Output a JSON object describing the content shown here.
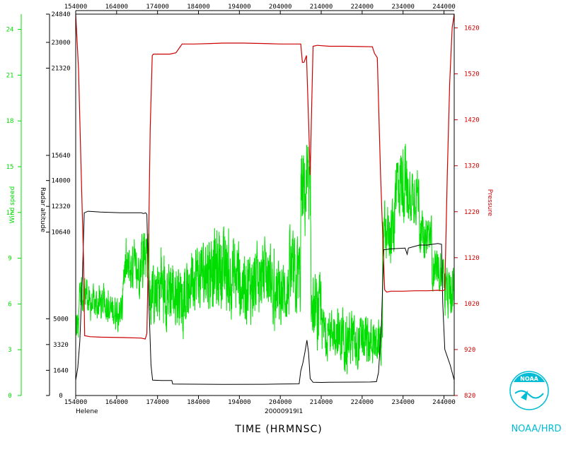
{
  "chart_data": {
    "type": "line",
    "storm_name": "Helene",
    "date_code": "20000919I1",
    "xlabel": "TIME (HRMNSC)",
    "x_ticks": [
      "154000",
      "164000",
      "174000",
      "184000",
      "194000",
      "204000",
      "214000",
      "224000",
      "234000",
      "244000"
    ],
    "xlim": [
      154000,
      246500
    ],
    "axes": {
      "wind": {
        "label": "Wind speed",
        "range": [
          0,
          25
        ],
        "ticks": [
          "0",
          "3",
          "6",
          "9",
          "12",
          "15",
          "18",
          "21",
          "24"
        ],
        "color": "#00dd00"
      },
      "altitude": {
        "label": "Radar altitude",
        "range": [
          0,
          24840
        ],
        "ticks": [
          "0",
          "1640",
          "3320",
          "5000",
          "10640",
          "12320",
          "14000",
          "15640",
          "21320",
          "23000",
          "24840"
        ],
        "color": "#00aa00"
      },
      "pressure": {
        "label": "Pressure",
        "range": [
          820,
          1650
        ],
        "ticks": [
          "820",
          "920",
          "1020",
          "1120",
          "1220",
          "1320",
          "1420",
          "1520",
          "1620"
        ],
        "color": "#cc0000"
      }
    },
    "series": [
      {
        "name": "Pressure",
        "color": "#cc0000",
        "points": [
          [
            154000,
            1650
          ],
          [
            154700,
            1530
          ],
          [
            155300,
            1320
          ],
          [
            155900,
            1120
          ],
          [
            156200,
            950
          ],
          [
            157500,
            948
          ],
          [
            160000,
            947
          ],
          [
            166000,
            946
          ],
          [
            170000,
            945
          ],
          [
            171000,
            943
          ],
          [
            171400,
            955
          ],
          [
            171800,
            1150
          ],
          [
            172200,
            1400
          ],
          [
            172700,
            1560
          ],
          [
            173000,
            1563
          ],
          [
            175000,
            1563
          ],
          [
            177000,
            1563
          ],
          [
            178500,
            1566
          ],
          [
            180000,
            1585
          ],
          [
            183000,
            1585
          ],
          [
            187000,
            1586
          ],
          [
            190000,
            1587
          ],
          [
            195000,
            1587
          ],
          [
            200000,
            1586
          ],
          [
            204000,
            1585
          ],
          [
            209000,
            1585
          ],
          [
            209400,
            1545
          ],
          [
            209800,
            1545
          ],
          [
            210400,
            1560
          ],
          [
            210900,
            1420
          ],
          [
            211300,
            1300
          ],
          [
            211700,
            1460
          ],
          [
            212000,
            1580
          ],
          [
            213000,
            1582
          ],
          [
            216000,
            1580
          ],
          [
            220000,
            1580
          ],
          [
            226500,
            1579
          ],
          [
            227000,
            1565
          ],
          [
            227700,
            1555
          ],
          [
            228500,
            1300
          ],
          [
            229500,
            1050
          ],
          [
            230000,
            1045
          ],
          [
            231000,
            1047
          ],
          [
            234000,
            1047
          ],
          [
            237000,
            1048
          ],
          [
            240000,
            1048
          ],
          [
            242500,
            1049
          ],
          [
            243600,
            1048
          ],
          [
            244200,
            1050
          ],
          [
            244800,
            1300
          ],
          [
            245400,
            1500
          ],
          [
            246000,
            1620
          ],
          [
            246500,
            1660
          ]
        ]
      },
      {
        "name": "Radar altitude",
        "color": "#000000",
        "points": [
          [
            154000,
            1000
          ],
          [
            154500,
            1800
          ],
          [
            155000,
            3500
          ],
          [
            155600,
            7500
          ],
          [
            156100,
            11900
          ],
          [
            157000,
            12000
          ],
          [
            160000,
            11950
          ],
          [
            165000,
            11900
          ],
          [
            170000,
            11900
          ],
          [
            170600,
            11850
          ],
          [
            171100,
            11900
          ],
          [
            171400,
            11800
          ],
          [
            171900,
            6000
          ],
          [
            172400,
            2000
          ],
          [
            172800,
            1000
          ],
          [
            175000,
            980
          ],
          [
            177500,
            980
          ],
          [
            177700,
            750
          ],
          [
            180000,
            740
          ],
          [
            190000,
            720
          ],
          [
            200000,
            730
          ],
          [
            204000,
            750
          ],
          [
            208600,
            760
          ],
          [
            209000,
            1600
          ],
          [
            209500,
            2100
          ],
          [
            210000,
            2800
          ],
          [
            210500,
            3600
          ],
          [
            210900,
            2800
          ],
          [
            211300,
            1100
          ],
          [
            212000,
            860
          ],
          [
            214000,
            850
          ],
          [
            216000,
            860
          ],
          [
            220000,
            870
          ],
          [
            226000,
            880
          ],
          [
            227500,
            900
          ],
          [
            228000,
            1500
          ],
          [
            228700,
            4500
          ],
          [
            229300,
            9500
          ],
          [
            229600,
            9500
          ],
          [
            231000,
            9550
          ],
          [
            234500,
            9600
          ],
          [
            235000,
            9200
          ],
          [
            235300,
            9600
          ],
          [
            238000,
            9800
          ],
          [
            240000,
            9800
          ],
          [
            242500,
            9900
          ],
          [
            243400,
            9850
          ],
          [
            243700,
            6000
          ],
          [
            244200,
            3000
          ],
          [
            245500,
            2000
          ],
          [
            246500,
            1000
          ]
        ]
      },
      {
        "name": "Wind speed",
        "color": "#00dd00",
        "segments": [
          [
            154000,
            154700,
            2.5,
            6.5
          ],
          [
            154700,
            157000,
            4.5,
            9.0
          ],
          [
            157000,
            162000,
            4.0,
            8.0
          ],
          [
            162000,
            165500,
            3.5,
            7.5
          ],
          [
            165500,
            170000,
            5.5,
            11.0
          ],
          [
            170000,
            172000,
            6.0,
            13.0
          ],
          [
            172000,
            174000,
            3.0,
            10.0
          ],
          [
            174000,
            178000,
            2.5,
            11.5
          ],
          [
            178000,
            182000,
            3.0,
            10.0
          ],
          [
            182000,
            186000,
            4.0,
            12.0
          ],
          [
            186000,
            190000,
            3.5,
            13.0
          ],
          [
            190000,
            194000,
            3.5,
            12.5
          ],
          [
            194000,
            198000,
            3.0,
            11.5
          ],
          [
            198000,
            202000,
            4.0,
            11.5
          ],
          [
            202000,
            206000,
            3.0,
            10.5
          ],
          [
            206000,
            209000,
            3.0,
            12.5
          ],
          [
            209000,
            211500,
            8.0,
            18.5
          ],
          [
            211500,
            214000,
            1.5,
            9.5
          ],
          [
            214000,
            218000,
            1.5,
            7.0
          ],
          [
            218000,
            222000,
            0.5,
            7.0
          ],
          [
            222000,
            226000,
            0.5,
            6.5
          ],
          [
            226000,
            229000,
            1.0,
            6.0
          ],
          [
            229000,
            232000,
            7.5,
            14.0
          ],
          [
            232000,
            235000,
            9.5,
            18.5
          ],
          [
            235000,
            238000,
            10.0,
            16.5
          ],
          [
            238000,
            241000,
            8.0,
            13.0
          ],
          [
            241000,
            244000,
            6.0,
            10.5
          ],
          [
            244000,
            246500,
            4.0,
            9.5
          ]
        ]
      }
    ]
  },
  "logo": {
    "org": "NOAA/HRD",
    "emblem_text": "NOAA"
  },
  "colors": {
    "pressure": "#cc0000",
    "altitude": "#000000",
    "wind": "#00dd00",
    "logo": "#00bcd4"
  }
}
